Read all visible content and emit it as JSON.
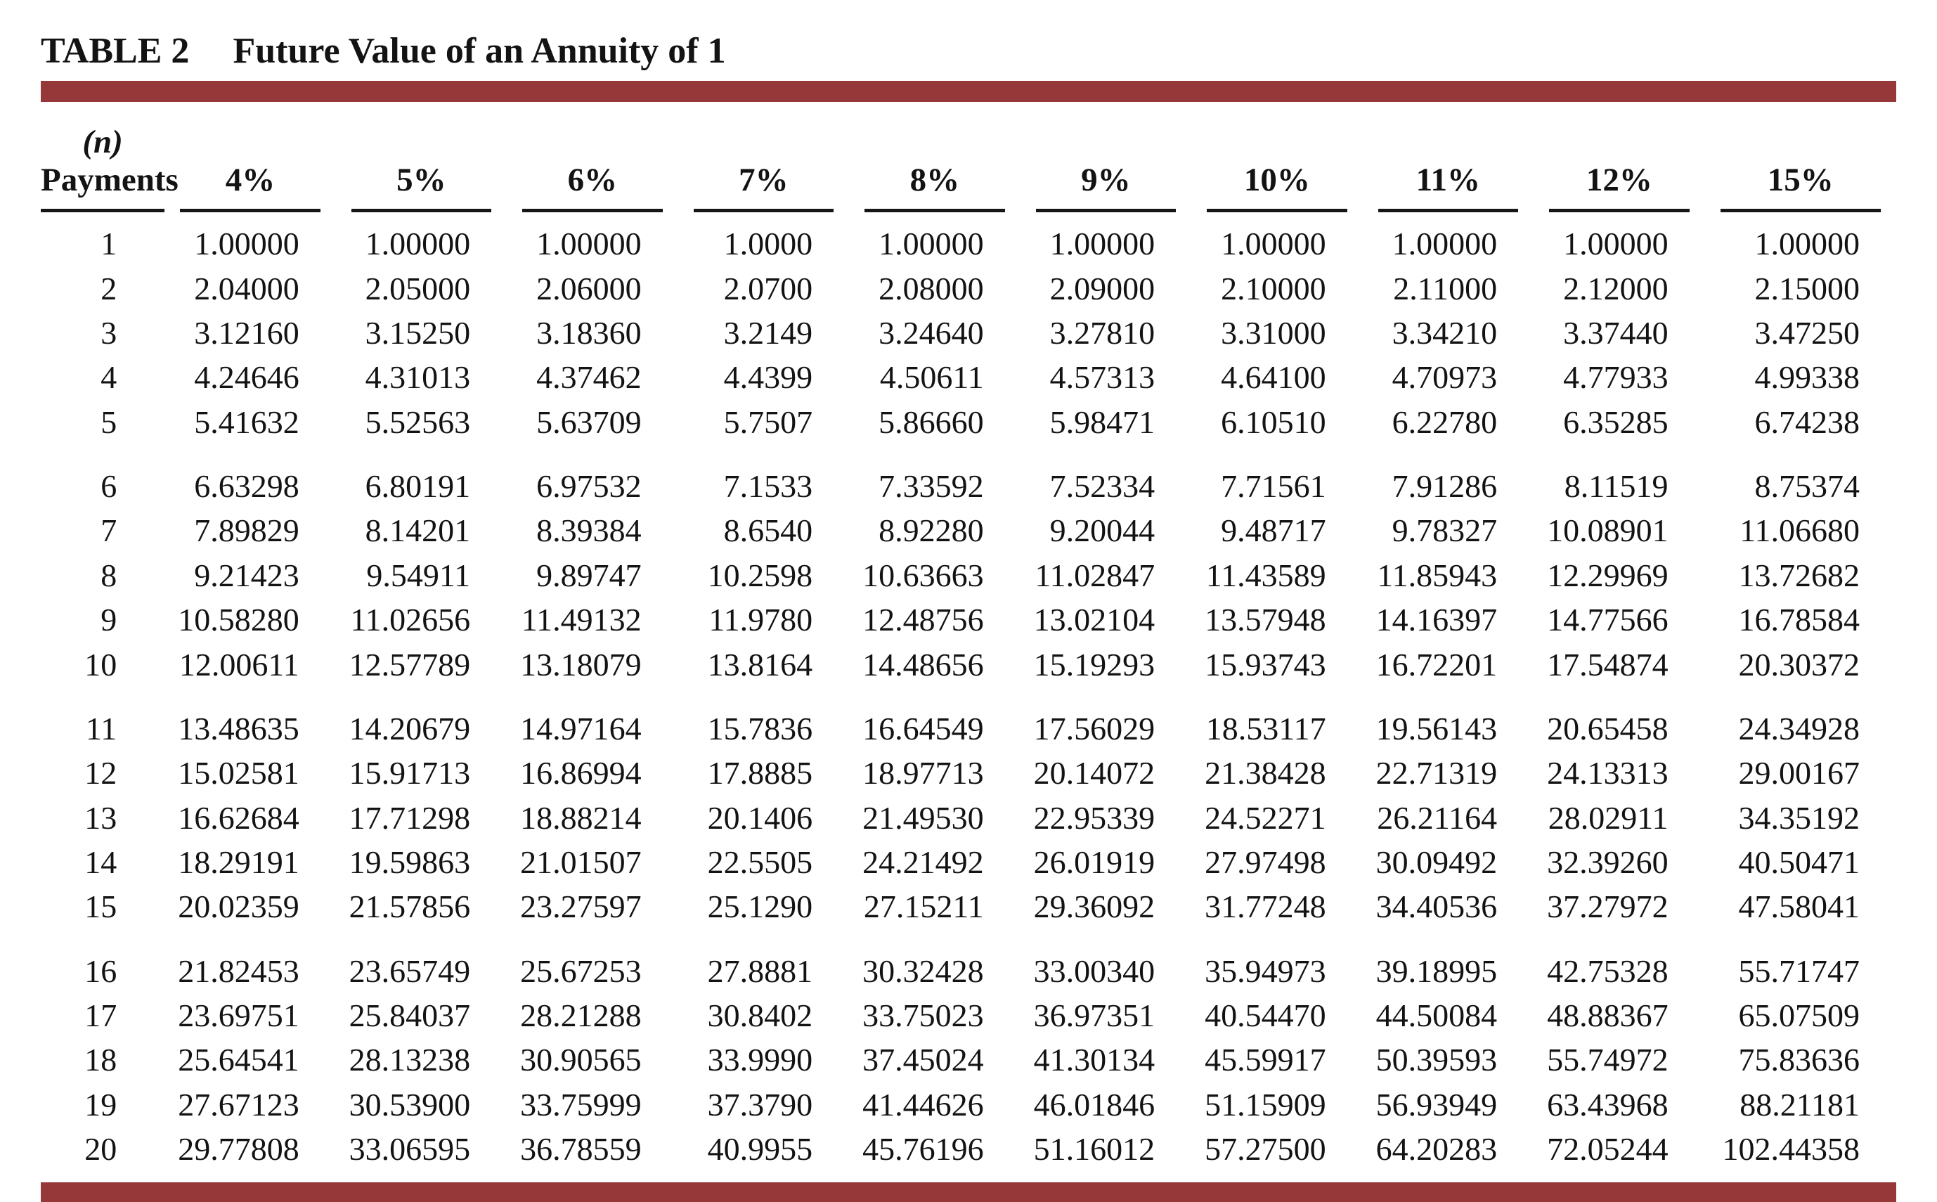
{
  "title": {
    "label": "TABLE 2",
    "text": "Future Value of an Annuity of 1"
  },
  "accent_color": "#963739",
  "rule_color": "#161616",
  "table": {
    "n_header_top": "(n)",
    "n_header_bottom": "Payments",
    "rate_headers": [
      "4%",
      "5%",
      "6%",
      "7%",
      "8%",
      "9%",
      "10%",
      "11%",
      "12%",
      "15%"
    ],
    "group_size": 5,
    "rows": [
      {
        "n": "1",
        "values": [
          "1.00000",
          "1.00000",
          "1.00000",
          "1.0000",
          "1.00000",
          "1.00000",
          "1.00000",
          "1.00000",
          "1.00000",
          "1.00000"
        ]
      },
      {
        "n": "2",
        "values": [
          "2.04000",
          "2.05000",
          "2.06000",
          "2.0700",
          "2.08000",
          "2.09000",
          "2.10000",
          "2.11000",
          "2.12000",
          "2.15000"
        ]
      },
      {
        "n": "3",
        "values": [
          "3.12160",
          "3.15250",
          "3.18360",
          "3.2149",
          "3.24640",
          "3.27810",
          "3.31000",
          "3.34210",
          "3.37440",
          "3.47250"
        ]
      },
      {
        "n": "4",
        "values": [
          "4.24646",
          "4.31013",
          "4.37462",
          "4.4399",
          "4.50611",
          "4.57313",
          "4.64100",
          "4.70973",
          "4.77933",
          "4.99338"
        ]
      },
      {
        "n": "5",
        "values": [
          "5.41632",
          "5.52563",
          "5.63709",
          "5.7507",
          "5.86660",
          "5.98471",
          "6.10510",
          "6.22780",
          "6.35285",
          "6.74238"
        ]
      },
      {
        "n": "6",
        "values": [
          "6.63298",
          "6.80191",
          "6.97532",
          "7.1533",
          "7.33592",
          "7.52334",
          "7.71561",
          "7.91286",
          "8.11519",
          "8.75374"
        ]
      },
      {
        "n": "7",
        "values": [
          "7.89829",
          "8.14201",
          "8.39384",
          "8.6540",
          "8.92280",
          "9.20044",
          "9.48717",
          "9.78327",
          "10.08901",
          "11.06680"
        ]
      },
      {
        "n": "8",
        "values": [
          "9.21423",
          "9.54911",
          "9.89747",
          "10.2598",
          "10.63663",
          "11.02847",
          "11.43589",
          "11.85943",
          "12.29969",
          "13.72682"
        ]
      },
      {
        "n": "9",
        "values": [
          "10.58280",
          "11.02656",
          "11.49132",
          "11.9780",
          "12.48756",
          "13.02104",
          "13.57948",
          "14.16397",
          "14.77566",
          "16.78584"
        ]
      },
      {
        "n": "10",
        "values": [
          "12.00611",
          "12.57789",
          "13.18079",
          "13.8164",
          "14.48656",
          "15.19293",
          "15.93743",
          "16.72201",
          "17.54874",
          "20.30372"
        ]
      },
      {
        "n": "11",
        "values": [
          "13.48635",
          "14.20679",
          "14.97164",
          "15.7836",
          "16.64549",
          "17.56029",
          "18.53117",
          "19.56143",
          "20.65458",
          "24.34928"
        ]
      },
      {
        "n": "12",
        "values": [
          "15.02581",
          "15.91713",
          "16.86994",
          "17.8885",
          "18.97713",
          "20.14072",
          "21.38428",
          "22.71319",
          "24.13313",
          "29.00167"
        ]
      },
      {
        "n": "13",
        "values": [
          "16.62684",
          "17.71298",
          "18.88214",
          "20.1406",
          "21.49530",
          "22.95339",
          "24.52271",
          "26.21164",
          "28.02911",
          "34.35192"
        ]
      },
      {
        "n": "14",
        "values": [
          "18.29191",
          "19.59863",
          "21.01507",
          "22.5505",
          "24.21492",
          "26.01919",
          "27.97498",
          "30.09492",
          "32.39260",
          "40.50471"
        ]
      },
      {
        "n": "15",
        "values": [
          "20.02359",
          "21.57856",
          "23.27597",
          "25.1290",
          "27.15211",
          "29.36092",
          "31.77248",
          "34.40536",
          "37.27972",
          "47.58041"
        ]
      },
      {
        "n": "16",
        "values": [
          "21.82453",
          "23.65749",
          "25.67253",
          "27.8881",
          "30.32428",
          "33.00340",
          "35.94973",
          "39.18995",
          "42.75328",
          "55.71747"
        ]
      },
      {
        "n": "17",
        "values": [
          "23.69751",
          "25.84037",
          "28.21288",
          "30.8402",
          "33.75023",
          "36.97351",
          "40.54470",
          "44.50084",
          "48.88367",
          "65.07509"
        ]
      },
      {
        "n": "18",
        "values": [
          "25.64541",
          "28.13238",
          "30.90565",
          "33.9990",
          "37.45024",
          "41.30134",
          "45.59917",
          "50.39593",
          "55.74972",
          "75.83636"
        ]
      },
      {
        "n": "19",
        "values": [
          "27.67123",
          "30.53900",
          "33.75999",
          "37.3790",
          "41.44626",
          "46.01846",
          "51.15909",
          "56.93949",
          "63.43968",
          "88.21181"
        ]
      },
      {
        "n": "20",
        "values": [
          "29.77808",
          "33.06595",
          "36.78559",
          "40.9955",
          "45.76196",
          "51.16012",
          "57.27500",
          "64.20283",
          "72.05244",
          "102.44358"
        ]
      }
    ]
  }
}
